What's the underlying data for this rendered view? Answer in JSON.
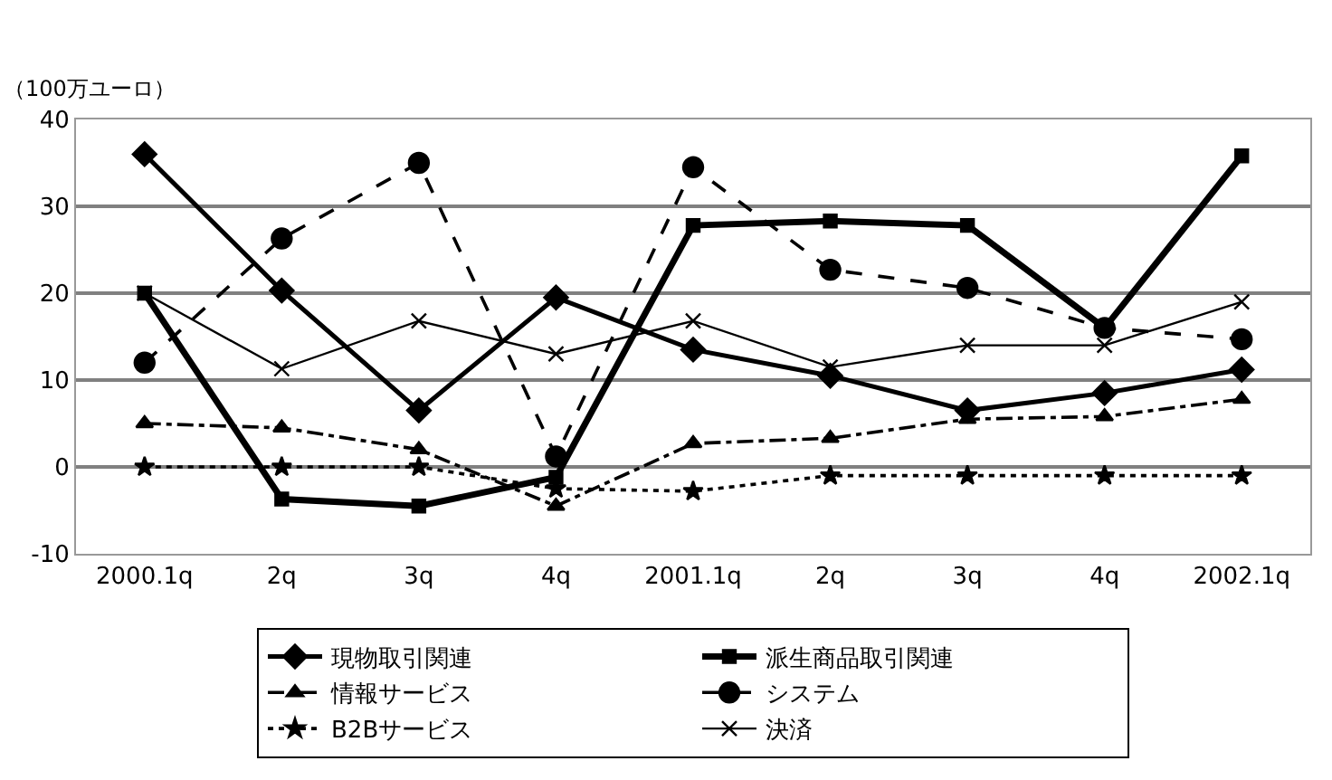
{
  "chart_data": {
    "type": "line",
    "ylabel": "（100万ユーロ）",
    "categories": [
      "2000.1q",
      "2q",
      "3q",
      "4q",
      "2001.1q",
      "2q",
      "3q",
      "4q",
      "2002.1q"
    ],
    "ylim": [
      -10,
      40
    ],
    "yticks": [
      -10,
      0,
      10,
      20,
      30,
      40
    ],
    "grid": "y",
    "legend": "bottom",
    "series": [
      {
        "name": "現物取引関連",
        "color": "#000000",
        "marker": "diamond",
        "line_style": "solid",
        "values": [
          36,
          20.3,
          6.5,
          19.5,
          13.5,
          10.5,
          6.5,
          8.5,
          11.2
        ]
      },
      {
        "name": "派生商品取引関連",
        "color": "#000000",
        "marker": "square",
        "line_style": "solid",
        "values": [
          20,
          -3.7,
          -4.5,
          -1.2,
          27.8,
          28.3,
          27.8,
          16,
          35.8
        ]
      },
      {
        "name": "情報サービス",
        "color": "#000000",
        "marker": "triangle",
        "line_style": "dashdot",
        "values": [
          5,
          4.5,
          2,
          -4.5,
          2.7,
          3.3,
          5.5,
          5.8,
          7.8
        ]
      },
      {
        "name": "システム",
        "color": "#000000",
        "marker": "circle",
        "line_style": "dashed",
        "values": [
          12,
          26.3,
          35,
          1.2,
          34.5,
          22.7,
          20.6,
          16,
          14.7
        ]
      },
      {
        "name": "B2Bサービス",
        "color": "#000000",
        "marker": "star",
        "line_style": "dotted",
        "values": [
          0,
          0,
          0,
          -2.5,
          -2.8,
          -1,
          -1,
          -1,
          -1
        ]
      },
      {
        "name": "決済",
        "color": "#000000",
        "marker": "cross",
        "line_style": "solid",
        "values": [
          20,
          11.3,
          16.8,
          13,
          16.8,
          11.5,
          14,
          14,
          19
        ]
      }
    ]
  }
}
